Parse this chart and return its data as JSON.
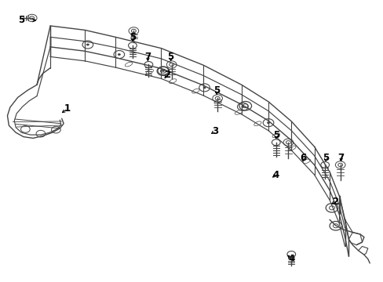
{
  "bg_color": "#ffffff",
  "frame_color": "#444444",
  "label_color": "#000000",
  "frame_lw": 1.0,
  "annotation_fontsize": 8.5,
  "figsize": [
    4.89,
    3.6
  ],
  "dpi": 100,
  "callout_specs": [
    {
      "label": "1",
      "xl": 0.175,
      "yl": 0.615,
      "xa": 0.155,
      "ya": 0.595,
      "arrow": true
    },
    {
      "label": "2",
      "xl": 0.435,
      "yl": 0.735,
      "xa": 0.425,
      "ya": 0.715,
      "arrow": true
    },
    {
      "label": "2",
      "xl": 0.875,
      "yl": 0.285,
      "xa": 0.86,
      "ya": 0.27,
      "arrow": true
    },
    {
      "label": "3",
      "xl": 0.56,
      "yl": 0.535,
      "xa": 0.545,
      "ya": 0.52,
      "arrow": true
    },
    {
      "label": "4",
      "xl": 0.76,
      "yl": 0.08,
      "xa": 0.745,
      "ya": 0.1,
      "arrow": true
    },
    {
      "label": "4",
      "xl": 0.72,
      "yl": 0.38,
      "xa": 0.705,
      "ya": 0.365,
      "arrow": true
    },
    {
      "label": "5",
      "xl": 0.055,
      "yl": 0.93,
      "xa": 0.075,
      "ya": 0.905,
      "arrow": true,
      "harrow": true
    },
    {
      "label": "5",
      "xl": 0.345,
      "yl": 0.87,
      "xa": 0.345,
      "ya": 0.845,
      "arrow": true
    },
    {
      "label": "5",
      "xl": 0.445,
      "yl": 0.8,
      "xa": 0.445,
      "ya": 0.775,
      "arrow": true
    },
    {
      "label": "5",
      "xl": 0.565,
      "yl": 0.68,
      "xa": 0.565,
      "ya": 0.655,
      "arrow": true
    },
    {
      "label": "5",
      "xl": 0.72,
      "yl": 0.52,
      "xa": 0.72,
      "ya": 0.498,
      "arrow": true
    },
    {
      "label": "5",
      "xl": 0.85,
      "yl": 0.44,
      "xa": 0.85,
      "ya": 0.418,
      "arrow": true
    },
    {
      "label": "6",
      "xl": 0.79,
      "yl": 0.44,
      "xa": 0.79,
      "ya": 0.418,
      "arrow": true
    },
    {
      "label": "7",
      "xl": 0.385,
      "yl": 0.8,
      "xa": 0.385,
      "ya": 0.775,
      "arrow": true
    },
    {
      "label": "7",
      "xl": 0.89,
      "yl": 0.44,
      "xa": 0.89,
      "ya": 0.418,
      "arrow": true
    }
  ]
}
